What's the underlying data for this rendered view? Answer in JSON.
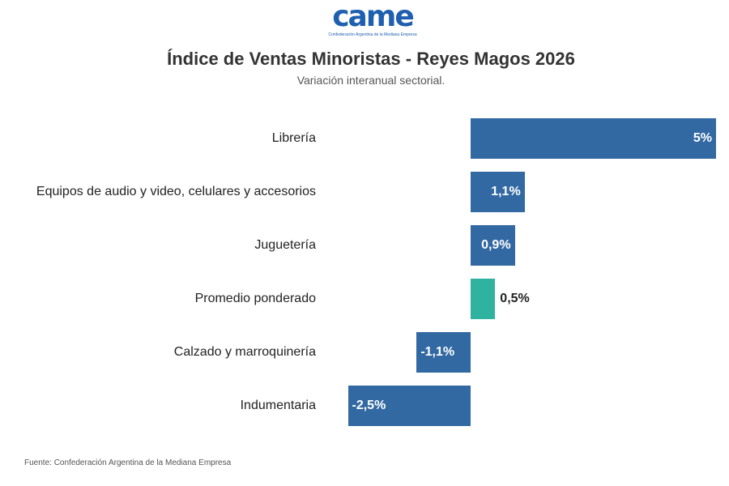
{
  "logo": {
    "mark": "came",
    "subtitle": "Confederación Argentina de la Mediana Empresa"
  },
  "chart_data": {
    "type": "bar",
    "orientation": "horizontal",
    "title": "Índice de Ventas Minoristas - Reyes Magos 2026",
    "subtitle": "Variación interanual sectorial.",
    "categories": [
      "Librería",
      "Equipos de audio y video, celulares y accesorios",
      "Juguetería",
      "Promedio ponderado",
      "Calzado y marroquinería",
      "Indumentaria"
    ],
    "values": [
      5,
      1.1,
      0.9,
      0.5,
      -1.1,
      -2.5
    ],
    "labels": [
      "5%",
      "1,1%",
      "0,9%",
      "0,5%",
      "-1,1%",
      "-2,5%"
    ],
    "highlight_index": 3,
    "colors": {
      "default": "#3369a3",
      "highlight": "#2fb3a0"
    },
    "xlabel": "",
    "ylabel": "",
    "grid": false
  },
  "source": "Fuente: Confederación Argentina de la Mediana Empresa"
}
